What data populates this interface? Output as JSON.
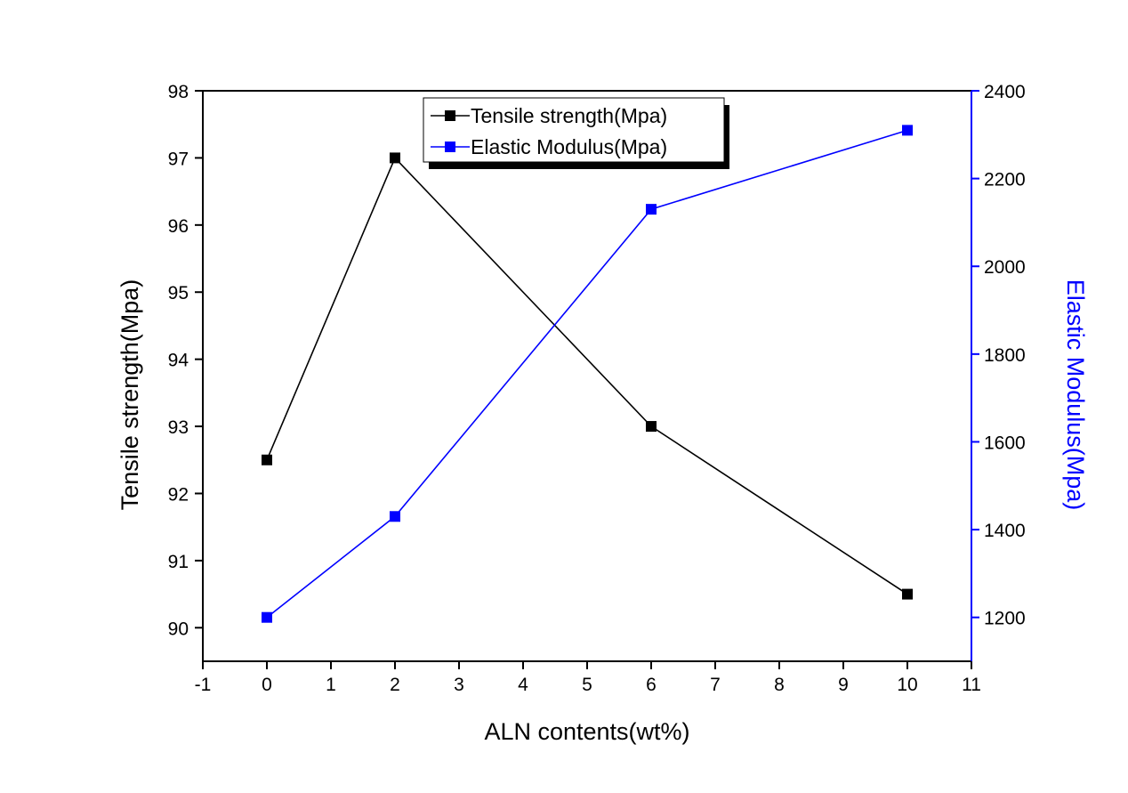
{
  "chart_data": {
    "type": "line",
    "xlabel": "ALN contents(wt%)",
    "ylabel": "Tensile strength(Mpa)",
    "y2label": "Elastic Modulus(Mpa)",
    "xlim": [
      -1,
      11
    ],
    "ylim": [
      89.5,
      98
    ],
    "y2lim": [
      1100,
      2400
    ],
    "xticks": [
      -1,
      0,
      1,
      2,
      3,
      4,
      5,
      6,
      7,
      8,
      9,
      10,
      11
    ],
    "yticks": [
      90,
      91,
      92,
      93,
      94,
      95,
      96,
      97,
      98
    ],
    "y2ticks": [
      1200,
      1400,
      1600,
      1800,
      2000,
      2200,
      2400
    ],
    "legend_position": "top-center",
    "grid": false,
    "series": [
      {
        "name": "Tensile strength(Mpa)",
        "axis": "left",
        "color": "#000000",
        "marker": "square",
        "x": [
          0,
          2,
          6,
          10
        ],
        "y": [
          92.5,
          97.0,
          93.0,
          90.5
        ]
      },
      {
        "name": "Elastic Modulus(Mpa)",
        "axis": "right",
        "color": "#0000ff",
        "marker": "square",
        "x": [
          0,
          2,
          6,
          10
        ],
        "y": [
          1200,
          1430,
          2130,
          2310
        ]
      }
    ]
  }
}
